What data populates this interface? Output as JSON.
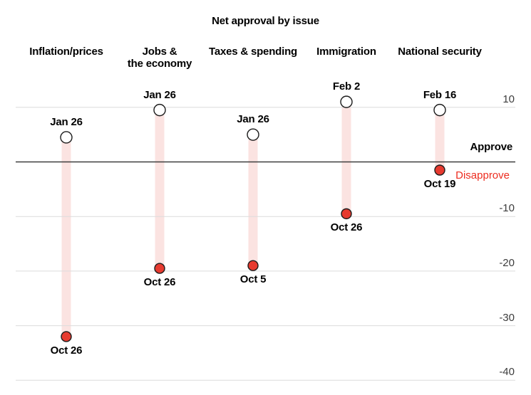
{
  "title": "Net approval by issue",
  "axis": {
    "approve_label": "Approve",
    "disapprove_label": "Disapprove"
  },
  "colors": {
    "approve_point_fill": "#ffffff",
    "disapprove_point_fill": "#e73a2f",
    "point_stroke": "#1c1c1c",
    "range_bar": "#fbe3e1",
    "gridline": "#dcdcdc",
    "zero_line": "#3d3d3d",
    "tick_text": "#3c3c3c",
    "disapprove_text": "#ed2c1f",
    "text": "#000000"
  },
  "chart_data": {
    "type": "dumbbell",
    "title": "Net approval by issue",
    "categories": [
      "Inflation/prices",
      "Jobs &\nthe economy",
      "Taxes & spending",
      "Immigration",
      "National security"
    ],
    "series": [
      {
        "name": "start",
        "labels": [
          "Jan 26",
          "Jan 26",
          "Jan 26",
          "Feb 2",
          "Feb 16"
        ],
        "values": [
          4.5,
          9.5,
          5,
          11,
          9.5
        ]
      },
      {
        "name": "end",
        "labels": [
          "Oct 26",
          "Oct 26",
          "Oct 5",
          "Oct 26",
          "Oct 19"
        ],
        "values": [
          -32,
          -19.5,
          -19,
          -9.5,
          -1.5
        ]
      }
    ],
    "yticks": [
      10,
      0,
      -10,
      -20,
      -30,
      -40
    ],
    "ytick_labels": [
      "10",
      "",
      "-10",
      "-20",
      "-30",
      "-40"
    ],
    "ylim": [
      -40,
      12
    ],
    "zero_annotations": {
      "above": "Approve",
      "below": "Disapprove"
    },
    "grid": "horizontal",
    "legend": "none"
  }
}
